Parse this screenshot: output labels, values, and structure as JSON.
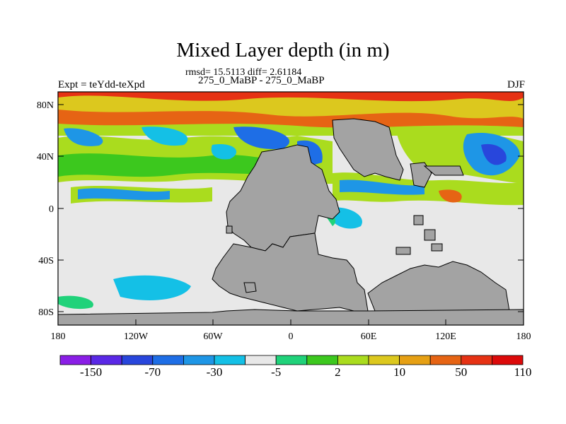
{
  "title": "Mixed Layer depth (in m)",
  "stats_line": "rmsd= 15.5113 diff= 2.61184",
  "runs_line": "275_0_MaBP - 275_0_MaBP",
  "left_label": "Expt = teYdd-teXpd",
  "right_label": "DJF",
  "lat_labels": [
    "80N",
    "40N",
    "0",
    "40S",
    "80S"
  ],
  "lon_labels": [
    "180",
    "120W",
    "60W",
    "0",
    "60E",
    "120E",
    "180"
  ],
  "colorbar": {
    "colors": [
      "#8a1ee6",
      "#5a28e6",
      "#2846dc",
      "#1e6ee6",
      "#1e96e6",
      "#14c0e6",
      "#e8e8e8",
      "#20d27a",
      "#3cc81e",
      "#aadc1e",
      "#dcc81e",
      "#e6a014",
      "#e66414",
      "#e63214",
      "#dc0a0a"
    ],
    "labels": [
      "-150",
      "-70",
      "-30",
      "-5",
      "2",
      "10",
      "50",
      "110"
    ]
  },
  "colors": {
    "land": "#a3a3a3",
    "neutral": "#e8e8e8"
  }
}
